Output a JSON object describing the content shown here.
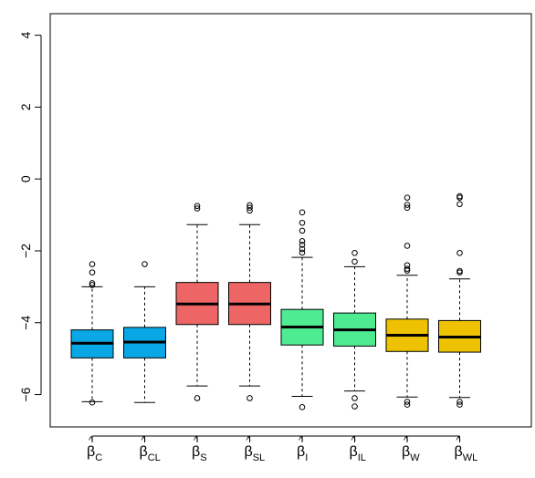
{
  "chart_data": {
    "type": "box",
    "title": "",
    "xlabel": "",
    "ylabel": "",
    "ylim": [
      -6.9,
      4.6
    ],
    "yticks": [
      -6,
      -4,
      -2,
      0,
      2,
      4
    ],
    "ytick_labels": [
      "−6",
      "−4",
      "−2",
      "0",
      "2",
      "4"
    ],
    "grid": false,
    "legend": "none",
    "categories": [
      {
        "base": "β",
        "hat": "^",
        "sub": "C"
      },
      {
        "base": "β",
        "hat": "^",
        "sub": "CL"
      },
      {
        "base": "β",
        "hat": "^",
        "sub": "S"
      },
      {
        "base": "β",
        "hat": "^",
        "sub": "SL"
      },
      {
        "base": "β",
        "hat": "^",
        "sub": "I"
      },
      {
        "base": "β",
        "hat": "^",
        "sub": "IL"
      },
      {
        "base": "β",
        "hat": "^",
        "sub": "W"
      },
      {
        "base": "β",
        "hat": "^",
        "sub": "WL"
      }
    ],
    "boxes": [
      {
        "whisker_low": -6.2,
        "q1": -4.98,
        "median": -4.57,
        "q3": -4.2,
        "whisker_high": -3.0,
        "outliers": [
          -6.22,
          -2.37,
          -2.6,
          -2.9,
          -2.95
        ],
        "color": "#0AA7E6"
      },
      {
        "whisker_low": -6.22,
        "q1": -4.98,
        "median": -4.54,
        "q3": -4.13,
        "whisker_high": -3.0,
        "outliers": [
          -2.37
        ],
        "color": "#0AA7E6"
      },
      {
        "whisker_low": -5.76,
        "q1": -4.05,
        "median": -3.48,
        "q3": -2.88,
        "whisker_high": -1.27,
        "outliers": [
          -6.1,
          -0.75,
          -0.82
        ],
        "color": "#EE6565"
      },
      {
        "whisker_low": -5.76,
        "q1": -4.05,
        "median": -3.48,
        "q3": -2.88,
        "whisker_high": -1.27,
        "outliers": [
          -6.1,
          -0.73,
          -0.8,
          -0.88
        ],
        "color": "#EE6565"
      },
      {
        "whisker_low": -6.05,
        "q1": -4.62,
        "median": -4.12,
        "q3": -3.63,
        "whisker_high": -2.18,
        "outliers": [
          -6.35,
          -0.93,
          -1.22,
          -1.44,
          -1.73,
          -1.83,
          -1.95,
          -2.05
        ],
        "color": "#4EEB92"
      },
      {
        "whisker_low": -5.9,
        "q1": -4.65,
        "median": -4.2,
        "q3": -3.73,
        "whisker_high": -2.44,
        "outliers": [
          -6.1,
          -6.33,
          -2.06,
          -2.3
        ],
        "color": "#4EEB92"
      },
      {
        "whisker_low": -6.07,
        "q1": -4.8,
        "median": -4.35,
        "q3": -3.9,
        "whisker_high": -2.68,
        "outliers": [
          -6.2,
          -6.28,
          -0.52,
          -0.72,
          -0.8,
          -1.86,
          -2.4,
          -2.5,
          -2.55
        ],
        "color": "#EEC200"
      },
      {
        "whisker_low": -6.08,
        "q1": -4.82,
        "median": -4.4,
        "q3": -3.94,
        "whisker_high": -2.78,
        "outliers": [
          -6.2,
          -6.28,
          -0.48,
          -0.52,
          -0.7,
          -2.06,
          -2.56,
          -2.6
        ],
        "color": "#EEC200"
      }
    ]
  }
}
